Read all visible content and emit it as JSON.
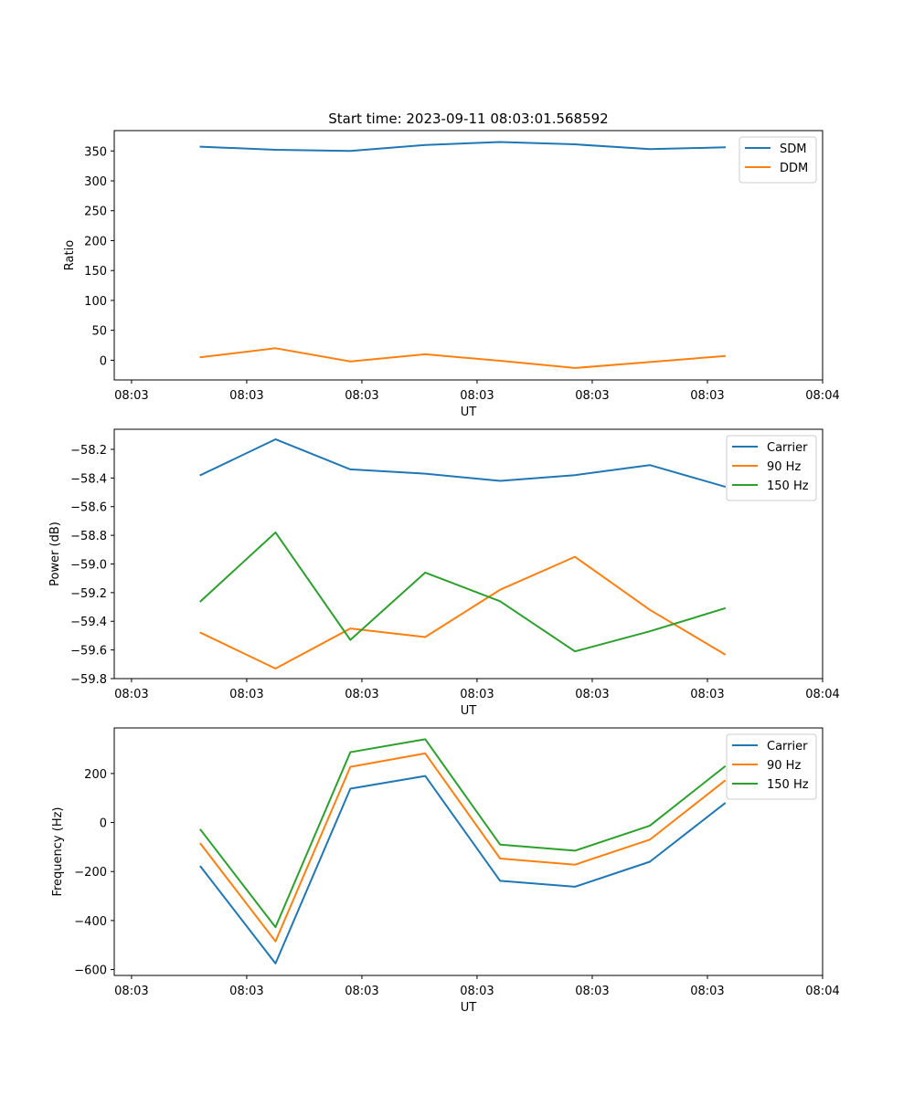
{
  "figure": {
    "title": "Start time: 2023-09-11 08:03:01.568592"
  },
  "colors": {
    "blue": "#1f77b4",
    "orange": "#ff7f0e",
    "green": "#2ca02c"
  },
  "chart_data": [
    {
      "type": "line",
      "title": "Start time: 2023-09-11 08:03:01.568592",
      "xlabel": "UT",
      "ylabel": "Ratio",
      "x": [
        0.75,
        1.4,
        2.05,
        2.7,
        3.35,
        4.0,
        4.65,
        5.3
      ],
      "xlim": [
        0,
        6.15
      ],
      "ylim": [
        -33,
        384
      ],
      "xticks": [
        0.15,
        1.15,
        2.15,
        3.15,
        4.15,
        5.15,
        6.15
      ],
      "xtick_labels": [
        "08:03",
        "08:03",
        "08:03",
        "08:03",
        "08:03",
        "08:03",
        "08:04"
      ],
      "yticks": [
        0,
        50,
        100,
        150,
        200,
        250,
        300,
        350
      ],
      "ytick_labels": [
        "0",
        "50",
        "100",
        "150",
        "200",
        "250",
        "300",
        "350"
      ],
      "legend_position": "upper-right",
      "series": [
        {
          "name": "SDM",
          "color": "#1f77b4",
          "values": [
            357,
            352,
            350,
            360,
            365,
            361,
            353,
            356
          ]
        },
        {
          "name": "DDM",
          "color": "#ff7f0e",
          "values": [
            5,
            20,
            -2,
            10,
            -1,
            -13,
            -3,
            7
          ]
        }
      ]
    },
    {
      "type": "line",
      "title": "",
      "xlabel": "UT",
      "ylabel": "Power (dB)",
      "x": [
        0.75,
        1.4,
        2.05,
        2.7,
        3.35,
        4.0,
        4.65,
        5.3
      ],
      "xlim": [
        0,
        6.15
      ],
      "ylim": [
        -59.8,
        -58.06
      ],
      "xticks": [
        0.15,
        1.15,
        2.15,
        3.15,
        4.15,
        5.15,
        6.15
      ],
      "xtick_labels": [
        "08:03",
        "08:03",
        "08:03",
        "08:03",
        "08:03",
        "08:03",
        "08:04"
      ],
      "yticks": [
        -59.8,
        -59.6,
        -59.4,
        -59.2,
        -59.0,
        -58.8,
        -58.6,
        -58.4,
        -58.2
      ],
      "ytick_labels": [
        "−59.8",
        "−59.6",
        "−59.4",
        "−59.2",
        "−59.0",
        "−58.8",
        "−58.6",
        "−58.4",
        "−58.2"
      ],
      "legend_position": "upper-right",
      "series": [
        {
          "name": "Carrier",
          "color": "#1f77b4",
          "values": [
            -58.38,
            -58.13,
            -58.34,
            -58.37,
            -58.42,
            -58.38,
            -58.31,
            -58.46
          ]
        },
        {
          "name": "90 Hz",
          "color": "#ff7f0e",
          "values": [
            -59.48,
            -59.73,
            -59.45,
            -59.51,
            -59.18,
            -58.95,
            -59.32,
            -59.63
          ]
        },
        {
          "name": "150 Hz",
          "color": "#2ca02c",
          "values": [
            -59.26,
            -58.78,
            -59.53,
            -59.06,
            -59.26,
            -59.61,
            -59.47,
            -59.31
          ]
        }
      ]
    },
    {
      "type": "line",
      "title": "",
      "xlabel": "UT",
      "ylabel": "Frequency (Hz)",
      "x": [
        0.75,
        1.4,
        2.05,
        2.7,
        3.35,
        4.0,
        4.65,
        5.3
      ],
      "xlim": [
        0,
        6.15
      ],
      "ylim": [
        -624,
        386
      ],
      "xticks": [
        0.15,
        1.15,
        2.15,
        3.15,
        4.15,
        5.15,
        6.15
      ],
      "xtick_labels": [
        "08:03",
        "08:03",
        "08:03",
        "08:03",
        "08:03",
        "08:03",
        "08:04"
      ],
      "yticks": [
        -600,
        -400,
        -200,
        0,
        200
      ],
      "ytick_labels": [
        "−600",
        "−400",
        "−200",
        "0",
        "200"
      ],
      "legend_position": "upper-right",
      "series": [
        {
          "name": "Carrier",
          "color": "#1f77b4",
          "values": [
            -180,
            -575,
            138,
            190,
            -238,
            -262,
            -160,
            78
          ]
        },
        {
          "name": "90 Hz",
          "color": "#ff7f0e",
          "values": [
            -87,
            -485,
            227,
            282,
            -147,
            -172,
            -70,
            170
          ]
        },
        {
          "name": "150 Hz",
          "color": "#2ca02c",
          "values": [
            -30,
            -427,
            287,
            340,
            -90,
            -115,
            -13,
            228
          ]
        }
      ]
    }
  ]
}
